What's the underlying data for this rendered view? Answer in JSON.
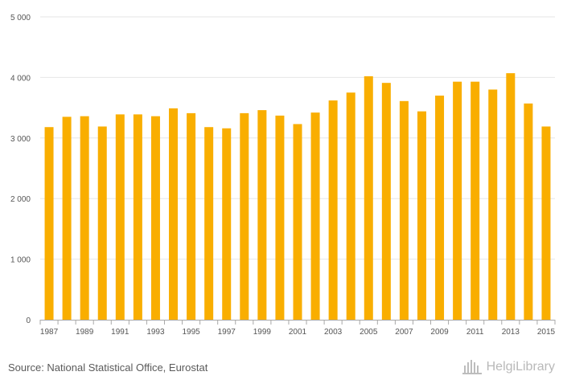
{
  "chart_data": {
    "type": "bar",
    "categories": [
      "1987",
      "1988",
      "1989",
      "1990",
      "1991",
      "1992",
      "1993",
      "1994",
      "1995",
      "1996",
      "1997",
      "1998",
      "1999",
      "2000",
      "2001",
      "2002",
      "2003",
      "2004",
      "2005",
      "2006",
      "2007",
      "2008",
      "2009",
      "2010",
      "2011",
      "2012",
      "2013",
      "2014",
      "2015"
    ],
    "values": [
      3180,
      3350,
      3360,
      3190,
      3390,
      3390,
      3360,
      3490,
      3410,
      3180,
      3160,
      3410,
      3460,
      3370,
      3230,
      3420,
      3620,
      3750,
      4020,
      3910,
      3610,
      3440,
      3700,
      3930,
      3930,
      3800,
      4070,
      3570,
      3190
    ],
    "x_tick_labels": [
      "1987",
      "1989",
      "1991",
      "1993",
      "1995",
      "1997",
      "1999",
      "2001",
      "2003",
      "2005",
      "2007",
      "2009",
      "2011",
      "2013",
      "2015"
    ],
    "y_tick_labels": [
      "0",
      "1 000",
      "2 000",
      "3 000",
      "4 000",
      "5 000"
    ],
    "ylim": [
      0,
      5000
    ],
    "y_ticks": [
      0,
      1000,
      2000,
      3000,
      4000,
      5000
    ],
    "grid": true,
    "legend": "none",
    "bar_color": "#f9ae00",
    "grid_color": "#e6e6e6",
    "axis_color": "#a8a8a8",
    "tick_label_color": "#555555"
  },
  "footer": {
    "source": "Source: National Statistical Office, Eurostat",
    "logo_text": "HelgiLibrary",
    "logo_icon": "helgi-library-logo-icon"
  }
}
